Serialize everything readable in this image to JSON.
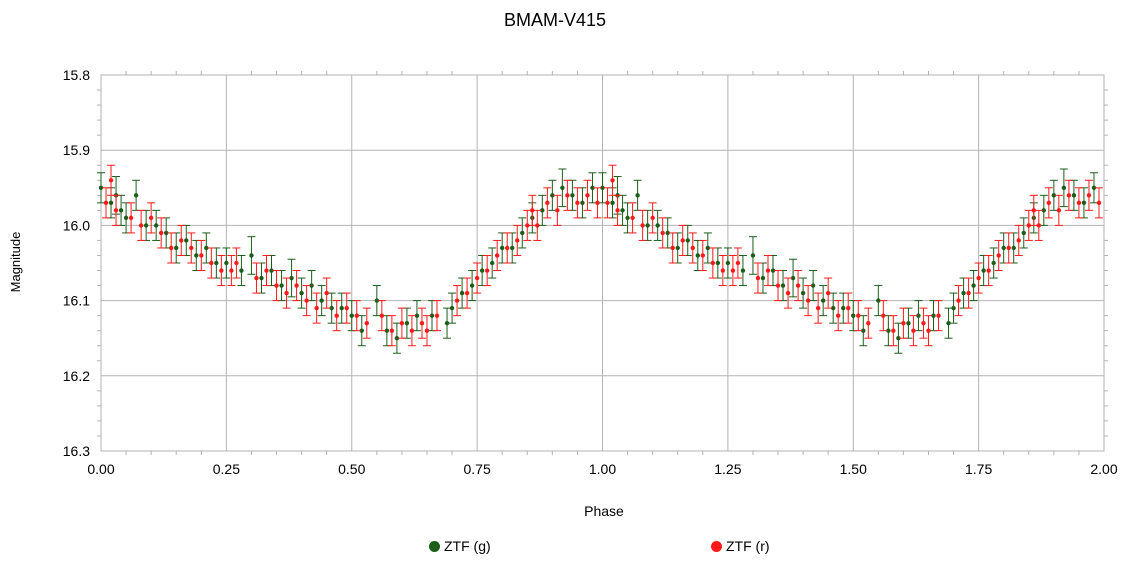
{
  "chart_data": {
    "type": "scatter",
    "title": "BMAM-V415",
    "xlabel": "Phase",
    "ylabel": "Magnitude",
    "xlim": [
      0,
      2
    ],
    "ylim": [
      15.8,
      16.3
    ],
    "y_inverted": true,
    "grid": true,
    "error_bars": true,
    "legend_position": "bottom",
    "x_ticks": [
      "0.00",
      "0.25",
      "0.50",
      "0.75",
      "1.00",
      "1.25",
      "1.50",
      "1.75",
      "2.00"
    ],
    "y_ticks": [
      "15.8",
      "15.9",
      "16.0",
      "16.1",
      "16.2",
      "16.3"
    ],
    "series": [
      {
        "name": "ZTF (g)",
        "color": "#1a5e1a",
        "points": [
          [
            0.0,
            15.95,
            0.02
          ],
          [
            0.02,
            15.97,
            0.02
          ],
          [
            0.03,
            15.96,
            0.025
          ],
          [
            0.04,
            15.98,
            0.02
          ],
          [
            0.05,
            15.99,
            0.02
          ],
          [
            0.07,
            15.96,
            0.02
          ],
          [
            0.09,
            16.0,
            0.02
          ],
          [
            0.11,
            16.0,
            0.02
          ],
          [
            0.13,
            16.01,
            0.02
          ],
          [
            0.15,
            16.03,
            0.02
          ],
          [
            0.17,
            16.02,
            0.02
          ],
          [
            0.19,
            16.04,
            0.02
          ],
          [
            0.21,
            16.03,
            0.02
          ],
          [
            0.23,
            16.05,
            0.02
          ],
          [
            0.25,
            16.05,
            0.02
          ],
          [
            0.28,
            16.06,
            0.02
          ],
          [
            0.3,
            16.04,
            0.025
          ],
          [
            0.32,
            16.07,
            0.02
          ],
          [
            0.34,
            16.06,
            0.02
          ],
          [
            0.36,
            16.08,
            0.02
          ],
          [
            0.38,
            16.07,
            0.025
          ],
          [
            0.4,
            16.09,
            0.02
          ],
          [
            0.42,
            16.08,
            0.02
          ],
          [
            0.44,
            16.1,
            0.02
          ],
          [
            0.46,
            16.11,
            0.02
          ],
          [
            0.48,
            16.11,
            0.02
          ],
          [
            0.5,
            16.12,
            0.02
          ],
          [
            0.52,
            16.14,
            0.02
          ],
          [
            0.55,
            16.1,
            0.02
          ],
          [
            0.57,
            16.14,
            0.02
          ],
          [
            0.59,
            16.15,
            0.02
          ],
          [
            0.61,
            16.13,
            0.02
          ],
          [
            0.63,
            16.12,
            0.02
          ],
          [
            0.66,
            16.12,
            0.02
          ],
          [
            0.69,
            16.13,
            0.02
          ],
          [
            0.7,
            16.11,
            0.02
          ],
          [
            0.72,
            16.09,
            0.02
          ],
          [
            0.74,
            16.08,
            0.02
          ],
          [
            0.76,
            16.06,
            0.02
          ],
          [
            0.78,
            16.05,
            0.02
          ],
          [
            0.8,
            16.03,
            0.02
          ],
          [
            0.82,
            16.03,
            0.02
          ],
          [
            0.84,
            16.01,
            0.02
          ],
          [
            0.86,
            15.99,
            0.02
          ],
          [
            0.88,
            15.98,
            0.02
          ],
          [
            0.9,
            15.96,
            0.02
          ],
          [
            0.92,
            15.95,
            0.025
          ],
          [
            0.94,
            15.96,
            0.02
          ],
          [
            0.96,
            15.97,
            0.02
          ],
          [
            0.98,
            15.95,
            0.02
          ],
          [
            1.0,
            15.95,
            0.02
          ],
          [
            1.02,
            15.97,
            0.02
          ],
          [
            1.03,
            15.96,
            0.025
          ],
          [
            1.04,
            15.98,
            0.02
          ],
          [
            1.05,
            15.99,
            0.02
          ],
          [
            1.07,
            15.96,
            0.02
          ],
          [
            1.09,
            16.0,
            0.02
          ],
          [
            1.11,
            16.0,
            0.02
          ],
          [
            1.13,
            16.01,
            0.02
          ],
          [
            1.15,
            16.03,
            0.02
          ],
          [
            1.17,
            16.02,
            0.02
          ],
          [
            1.19,
            16.04,
            0.02
          ],
          [
            1.21,
            16.03,
            0.02
          ],
          [
            1.23,
            16.05,
            0.02
          ],
          [
            1.25,
            16.05,
            0.02
          ],
          [
            1.28,
            16.06,
            0.02
          ],
          [
            1.3,
            16.04,
            0.025
          ],
          [
            1.32,
            16.07,
            0.02
          ],
          [
            1.34,
            16.06,
            0.02
          ],
          [
            1.36,
            16.08,
            0.02
          ],
          [
            1.38,
            16.07,
            0.025
          ],
          [
            1.4,
            16.09,
            0.02
          ],
          [
            1.42,
            16.08,
            0.02
          ],
          [
            1.44,
            16.1,
            0.02
          ],
          [
            1.46,
            16.11,
            0.02
          ],
          [
            1.48,
            16.11,
            0.02
          ],
          [
            1.5,
            16.12,
            0.02
          ],
          [
            1.52,
            16.14,
            0.02
          ],
          [
            1.55,
            16.1,
            0.02
          ],
          [
            1.57,
            16.14,
            0.02
          ],
          [
            1.59,
            16.15,
            0.02
          ],
          [
            1.61,
            16.13,
            0.02
          ],
          [
            1.63,
            16.12,
            0.02
          ],
          [
            1.66,
            16.12,
            0.02
          ],
          [
            1.69,
            16.13,
            0.02
          ],
          [
            1.7,
            16.11,
            0.02
          ],
          [
            1.72,
            16.09,
            0.02
          ],
          [
            1.74,
            16.08,
            0.02
          ],
          [
            1.76,
            16.06,
            0.02
          ],
          [
            1.78,
            16.05,
            0.02
          ],
          [
            1.8,
            16.03,
            0.02
          ],
          [
            1.82,
            16.03,
            0.02
          ],
          [
            1.84,
            16.01,
            0.02
          ],
          [
            1.86,
            15.99,
            0.02
          ],
          [
            1.88,
            15.98,
            0.02
          ],
          [
            1.9,
            15.96,
            0.02
          ],
          [
            1.92,
            15.95,
            0.025
          ],
          [
            1.94,
            15.96,
            0.02
          ],
          [
            1.96,
            15.97,
            0.02
          ],
          [
            1.98,
            15.95,
            0.02
          ]
        ]
      },
      {
        "name": "ZTF (r)",
        "color": "#ff1a1a",
        "points": [
          [
            0.01,
            15.97,
            0.02
          ],
          [
            0.02,
            15.94,
            0.02
          ],
          [
            0.03,
            15.98,
            0.02
          ],
          [
            0.06,
            15.99,
            0.02
          ],
          [
            0.08,
            16.0,
            0.02
          ],
          [
            0.1,
            15.99,
            0.02
          ],
          [
            0.12,
            16.01,
            0.02
          ],
          [
            0.14,
            16.03,
            0.02
          ],
          [
            0.16,
            16.02,
            0.02
          ],
          [
            0.18,
            16.03,
            0.02
          ],
          [
            0.2,
            16.04,
            0.02
          ],
          [
            0.22,
            16.05,
            0.02
          ],
          [
            0.24,
            16.06,
            0.02
          ],
          [
            0.26,
            16.06,
            0.02
          ],
          [
            0.27,
            16.05,
            0.02
          ],
          [
            0.31,
            16.07,
            0.02
          ],
          [
            0.33,
            16.06,
            0.02
          ],
          [
            0.35,
            16.08,
            0.02
          ],
          [
            0.37,
            16.09,
            0.02
          ],
          [
            0.39,
            16.08,
            0.02
          ],
          [
            0.41,
            16.1,
            0.02
          ],
          [
            0.43,
            16.11,
            0.02
          ],
          [
            0.45,
            16.09,
            0.02
          ],
          [
            0.47,
            16.12,
            0.02
          ],
          [
            0.49,
            16.11,
            0.02
          ],
          [
            0.51,
            16.12,
            0.02
          ],
          [
            0.53,
            16.13,
            0.02
          ],
          [
            0.56,
            16.12,
            0.02
          ],
          [
            0.58,
            16.14,
            0.02
          ],
          [
            0.6,
            16.13,
            0.02
          ],
          [
            0.62,
            16.14,
            0.02
          ],
          [
            0.64,
            16.13,
            0.02
          ],
          [
            0.65,
            16.14,
            0.02
          ],
          [
            0.67,
            16.12,
            0.02
          ],
          [
            0.71,
            16.1,
            0.02
          ],
          [
            0.73,
            16.09,
            0.02
          ],
          [
            0.75,
            16.07,
            0.02
          ],
          [
            0.77,
            16.06,
            0.02
          ],
          [
            0.79,
            16.04,
            0.02
          ],
          [
            0.81,
            16.03,
            0.02
          ],
          [
            0.83,
            16.02,
            0.02
          ],
          [
            0.85,
            16.0,
            0.02
          ],
          [
            0.86,
            15.98,
            0.02
          ],
          [
            0.87,
            16.0,
            0.02
          ],
          [
            0.89,
            15.97,
            0.02
          ],
          [
            0.91,
            15.98,
            0.02
          ],
          [
            0.93,
            15.96,
            0.02
          ],
          [
            0.95,
            15.97,
            0.02
          ],
          [
            0.97,
            15.96,
            0.02
          ],
          [
            0.99,
            15.97,
            0.02
          ],
          [
            1.01,
            15.97,
            0.02
          ],
          [
            1.02,
            15.94,
            0.02
          ],
          [
            1.03,
            15.98,
            0.02
          ],
          [
            1.06,
            15.99,
            0.02
          ],
          [
            1.08,
            16.0,
            0.02
          ],
          [
            1.1,
            15.99,
            0.02
          ],
          [
            1.12,
            16.01,
            0.02
          ],
          [
            1.14,
            16.03,
            0.02
          ],
          [
            1.16,
            16.02,
            0.02
          ],
          [
            1.18,
            16.03,
            0.02
          ],
          [
            1.2,
            16.04,
            0.02
          ],
          [
            1.22,
            16.05,
            0.02
          ],
          [
            1.24,
            16.06,
            0.02
          ],
          [
            1.26,
            16.06,
            0.02
          ],
          [
            1.27,
            16.05,
            0.02
          ],
          [
            1.31,
            16.07,
            0.02
          ],
          [
            1.33,
            16.06,
            0.02
          ],
          [
            1.35,
            16.08,
            0.02
          ],
          [
            1.37,
            16.09,
            0.02
          ],
          [
            1.39,
            16.08,
            0.02
          ],
          [
            1.41,
            16.1,
            0.02
          ],
          [
            1.43,
            16.11,
            0.02
          ],
          [
            1.45,
            16.09,
            0.02
          ],
          [
            1.47,
            16.12,
            0.02
          ],
          [
            1.49,
            16.11,
            0.02
          ],
          [
            1.51,
            16.12,
            0.02
          ],
          [
            1.53,
            16.13,
            0.02
          ],
          [
            1.56,
            16.12,
            0.02
          ],
          [
            1.58,
            16.14,
            0.02
          ],
          [
            1.6,
            16.13,
            0.02
          ],
          [
            1.62,
            16.14,
            0.02
          ],
          [
            1.64,
            16.13,
            0.02
          ],
          [
            1.65,
            16.14,
            0.02
          ],
          [
            1.67,
            16.12,
            0.02
          ],
          [
            1.71,
            16.1,
            0.02
          ],
          [
            1.73,
            16.09,
            0.02
          ],
          [
            1.75,
            16.07,
            0.02
          ],
          [
            1.77,
            16.06,
            0.02
          ],
          [
            1.79,
            16.04,
            0.02
          ],
          [
            1.81,
            16.03,
            0.02
          ],
          [
            1.83,
            16.02,
            0.02
          ],
          [
            1.85,
            16.0,
            0.02
          ],
          [
            1.86,
            15.98,
            0.02
          ],
          [
            1.87,
            16.0,
            0.02
          ],
          [
            1.89,
            15.97,
            0.02
          ],
          [
            1.91,
            15.98,
            0.02
          ],
          [
            1.93,
            15.96,
            0.02
          ],
          [
            1.95,
            15.97,
            0.02
          ],
          [
            1.97,
            15.96,
            0.02
          ],
          [
            1.99,
            15.97,
            0.02
          ]
        ]
      }
    ]
  }
}
